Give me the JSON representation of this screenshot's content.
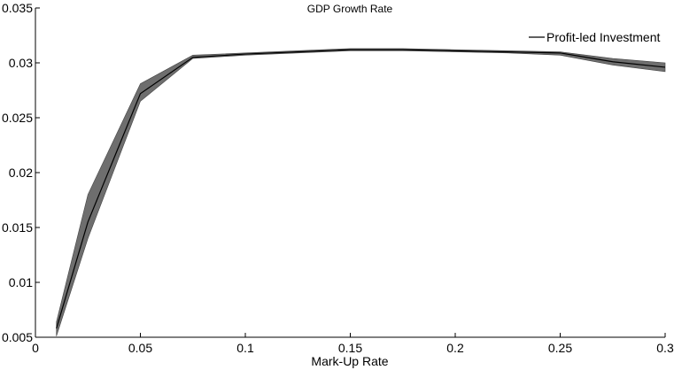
{
  "chart_data": {
    "type": "line",
    "title": "GDP Growth Rate",
    "xlabel": "Mark-Up Rate",
    "ylabel": "",
    "xlim": [
      0,
      0.3
    ],
    "ylim": [
      0.005,
      0.035
    ],
    "xticks": [
      0,
      0.05,
      0.1,
      0.15,
      0.2,
      0.25,
      0.3
    ],
    "xtick_labels": [
      "0",
      "0.05",
      "0.1",
      "0.15",
      "0.2",
      "0.25",
      "0.3"
    ],
    "yticks": [
      0.005,
      0.01,
      0.015,
      0.02,
      0.025,
      0.03,
      0.035
    ],
    "ytick_labels": [
      "0.005",
      "0.01",
      "0.015",
      "0.02",
      "0.025",
      "0.03",
      "0.035"
    ],
    "grid": false,
    "legend": "top-right",
    "colors": {
      "line": "#000000",
      "band": "#6e6e6e",
      "axis": "#000000"
    },
    "series": [
      {
        "name": "Profit-led Investment",
        "x": [
          0.01,
          0.025,
          0.05,
          0.075,
          0.1,
          0.125,
          0.15,
          0.175,
          0.2,
          0.225,
          0.25,
          0.275,
          0.3
        ],
        "values": [
          0.0058,
          0.0155,
          0.0272,
          0.0305,
          0.0308,
          0.031,
          0.0312,
          0.0312,
          0.0311,
          0.031,
          0.0309,
          0.0301,
          0.0296
        ],
        "lower": [
          0.0051,
          0.014,
          0.0265,
          0.0304,
          0.0307,
          0.0309,
          0.0311,
          0.0311,
          0.031,
          0.0309,
          0.0307,
          0.0298,
          0.0292
        ],
        "upper": [
          0.0064,
          0.018,
          0.0281,
          0.0307,
          0.0309,
          0.0311,
          0.0313,
          0.0313,
          0.0312,
          0.0311,
          0.031,
          0.0304,
          0.03
        ]
      }
    ]
  }
}
